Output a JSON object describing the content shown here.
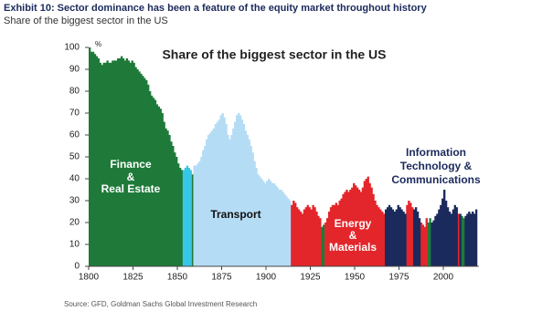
{
  "header": {
    "title": "Exhibit 10: Sector dominance has been a feature of the equity market throughout history",
    "subtitle": "Share of the biggest sector in the US"
  },
  "source": "Source: GFD, Goldman Sachs Global Investment Research",
  "chart_data": {
    "type": "bar",
    "title": "Share of the biggest sector in the US",
    "y_unit": "%",
    "annotations": [
      [
        "Finance",
        "&",
        "Real Estate"
      ],
      [
        "Transport"
      ],
      [
        "Energy",
        "&",
        "Materials"
      ],
      [
        "Information",
        "Technology &",
        "Communications"
      ]
    ],
    "xlim": [
      1800,
      2020
    ],
    "xticks": [
      1800,
      1825,
      1850,
      1875,
      1900,
      1925,
      1950,
      1975,
      2000
    ],
    "ylim": [
      0,
      100
    ],
    "yticks": [
      0,
      10,
      20,
      30,
      40,
      50,
      60,
      70,
      80,
      90,
      100
    ],
    "series": [
      {
        "color": "#1f7a3a",
        "x": [
          1800,
          1801,
          1802,
          1803,
          1804,
          1805,
          1806,
          1807,
          1808,
          1809,
          1810,
          1811,
          1812,
          1813,
          1814,
          1815,
          1816,
          1817,
          1818,
          1819,
          1820,
          1821,
          1822,
          1823,
          1824,
          1825,
          1826,
          1827,
          1828,
          1829,
          1830,
          1831,
          1832,
          1833,
          1834,
          1835,
          1836,
          1837,
          1838,
          1839,
          1840,
          1841,
          1842,
          1843,
          1844,
          1845,
          1846,
          1847,
          1848,
          1849,
          1850,
          1851,
          1852,
          1858,
          1931,
          1932,
          1991,
          1992,
          2010,
          2011
        ],
        "values": [
          100,
          98,
          98,
          97,
          96,
          95,
          93,
          92,
          93,
          93,
          94,
          93,
          93,
          94,
          94,
          94,
          95,
          95,
          96,
          95,
          94,
          95,
          94,
          93,
          94,
          93,
          91,
          90,
          89,
          88,
          87,
          86,
          85,
          83,
          80,
          78,
          77,
          76,
          74,
          73,
          72,
          70,
          66,
          63,
          62,
          60,
          57,
          55,
          52,
          50,
          47,
          45,
          44,
          42,
          18,
          19,
          20,
          22,
          23,
          22
        ]
      },
      {
        "color": "#38c6e6",
        "x": [
          1853,
          1854,
          1855,
          1856,
          1857
        ],
        "values": [
          44,
          45,
          46,
          45,
          44
        ]
      },
      {
        "color": "#b5dcf5",
        "x": [
          1859,
          1860,
          1861,
          1862,
          1863,
          1864,
          1865,
          1866,
          1867,
          1868,
          1869,
          1870,
          1871,
          1872,
          1873,
          1874,
          1875,
          1876,
          1877,
          1878,
          1879,
          1880,
          1881,
          1882,
          1883,
          1884,
          1885,
          1886,
          1887,
          1888,
          1889,
          1890,
          1891,
          1892,
          1893,
          1894,
          1895,
          1896,
          1897,
          1898,
          1899,
          1900,
          1901,
          1902,
          1903,
          1904,
          1905,
          1906,
          1907,
          1908,
          1909,
          1910,
          1911,
          1912,
          1913
        ],
        "values": [
          46,
          46,
          47,
          48,
          50,
          53,
          55,
          58,
          60,
          61,
          62,
          63,
          65,
          66,
          67,
          69,
          70,
          68,
          65,
          60,
          58,
          60,
          63,
          66,
          69,
          70,
          69,
          67,
          65,
          62,
          60,
          58,
          55,
          52,
          48,
          45,
          42,
          41,
          40,
          39,
          38,
          39,
          40,
          39,
          38,
          38,
          37,
          36,
          35,
          35,
          34,
          33,
          32,
          31,
          30
        ]
      },
      {
        "color": "#e3262b",
        "x": [
          1914,
          1915,
          1916,
          1917,
          1918,
          1919,
          1920,
          1921,
          1922,
          1923,
          1924,
          1925,
          1926,
          1927,
          1928,
          1929,
          1930,
          1933,
          1934,
          1935,
          1936,
          1937,
          1938,
          1939,
          1940,
          1941,
          1942,
          1943,
          1944,
          1945,
          1946,
          1947,
          1948,
          1949,
          1950,
          1951,
          1952,
          1953,
          1954,
          1955,
          1956,
          1957,
          1958,
          1959,
          1960,
          1961,
          1962,
          1963,
          1964,
          1965,
          1966,
          1979,
          1980,
          1981,
          1982,
          1987,
          1988,
          1989,
          1990,
          2008
        ],
        "values": [
          28,
          30,
          29,
          27,
          26,
          25,
          24,
          26,
          27,
          28,
          27,
          26,
          28,
          27,
          25,
          23,
          22,
          20,
          22,
          25,
          27,
          28,
          28,
          29,
          28,
          30,
          31,
          33,
          34,
          35,
          34,
          35,
          36,
          38,
          37,
          36,
          35,
          34,
          36,
          39,
          40,
          41,
          38,
          36,
          33,
          30,
          28,
          27,
          26,
          25,
          24,
          28,
          30,
          29,
          27,
          20,
          19,
          18,
          22,
          24
        ]
      },
      {
        "color": "#1b2a5c",
        "x": [
          1967,
          1968,
          1969,
          1970,
          1971,
          1972,
          1973,
          1974,
          1975,
          1976,
          1977,
          1978,
          1983,
          1984,
          1985,
          1986,
          1993,
          1994,
          1995,
          1996,
          1997,
          1998,
          1999,
          2000,
          2001,
          2002,
          2003,
          2004,
          2005,
          2006,
          2007,
          2009,
          2012,
          2013,
          2014,
          2015,
          2016,
          2017,
          2018
        ],
        "values": [
          26,
          27,
          28,
          27,
          26,
          25,
          26,
          28,
          27,
          26,
          25,
          24,
          26,
          27,
          25,
          22,
          20,
          21,
          23,
          24,
          26,
          28,
          31,
          35,
          30,
          27,
          25,
          24,
          26,
          28,
          27,
          24,
          23,
          24,
          25,
          24,
          25,
          24,
          26
        ]
      }
    ]
  }
}
